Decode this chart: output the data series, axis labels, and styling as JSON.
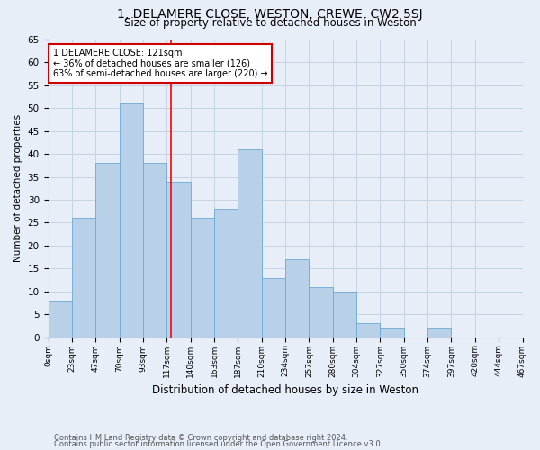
{
  "title_line1": "1, DELAMERE CLOSE, WESTON, CREWE, CW2 5SJ",
  "title_line2": "Size of property relative to detached houses in Weston",
  "xlabel": "Distribution of detached houses by size in Weston",
  "ylabel": "Number of detached properties",
  "bar_values": [
    8,
    26,
    38,
    51,
    38,
    34,
    26,
    28,
    41,
    13,
    17,
    11,
    10,
    3,
    2,
    0,
    2
  ],
  "bar_labels": [
    "0sqm",
    "23sqm",
    "47sqm",
    "70sqm",
    "93sqm",
    "117sqm",
    "140sqm",
    "163sqm",
    "187sqm",
    "210sqm",
    "234sqm",
    "257sqm",
    "280sqm",
    "304sqm",
    "327sqm",
    "350sqm",
    "374sqm",
    "397sqm",
    "420sqm",
    "444sqm",
    "467sqm"
  ],
  "bar_color": "#b8d0e8",
  "bar_edge_color": "#6aaad4",
  "grid_color": "#c8d4e4",
  "background_color": "#e8eef8",
  "annotation_text": "1 DELAMERE CLOSE: 121sqm\n← 36% of detached houses are smaller (126)\n63% of semi-detached houses are larger (220) →",
  "annotation_box_color": "#ffffff",
  "annotation_box_edge": "#cc0000",
  "ylim": [
    0,
    65
  ],
  "yticks": [
    0,
    5,
    10,
    15,
    20,
    25,
    30,
    35,
    40,
    45,
    50,
    55,
    60,
    65
  ],
  "footer_line1": "Contains HM Land Registry data © Crown copyright and database right 2024.",
  "footer_line2": "Contains public sector information licensed under the Open Government Licence v3.0."
}
